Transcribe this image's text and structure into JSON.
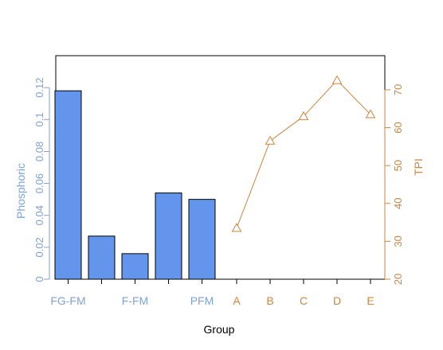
{
  "chart_data": {
    "type": "bar",
    "xlabel": "Group",
    "left_axis": {
      "label": "Phosphoric",
      "ylim": [
        0,
        0.14
      ],
      "ticks": [
        0,
        0.02,
        0.04,
        0.06,
        0.08,
        0.1,
        0.12
      ],
      "tick_labels": [
        "0",
        "0.02",
        "0.04",
        "0.06",
        "0.08",
        "0.1",
        "0.12"
      ]
    },
    "right_axis": {
      "label": "TPI",
      "ylim": [
        20,
        79
      ],
      "ticks": [
        20,
        30,
        40,
        50,
        60,
        70
      ],
      "tick_labels": [
        "20",
        "30",
        "40",
        "50",
        "60",
        "70"
      ]
    },
    "bar_series": {
      "axis": "left",
      "values": [
        0.118,
        0.027,
        0.016,
        0.054,
        0.05
      ],
      "tick_labels": [
        "FG-FM",
        "",
        "F-FM",
        "",
        "PFM"
      ]
    },
    "line_series": {
      "axis": "right",
      "categories": [
        "A",
        "B",
        "C",
        "D",
        "E"
      ],
      "values": [
        33.5,
        56.5,
        63,
        72.5,
        63.5
      ]
    },
    "colors": {
      "bar_fill": "#6495ed",
      "bar_axis": "#7ea2d8",
      "line": "#cd853f",
      "frame": "#000000"
    }
  }
}
